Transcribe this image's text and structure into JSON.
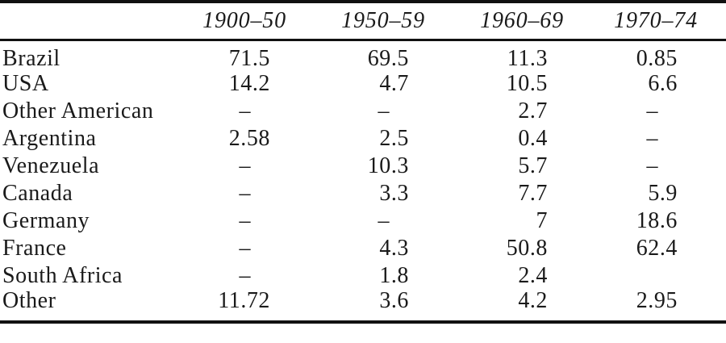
{
  "table": {
    "corner_label": "",
    "columns": [
      "1900–50",
      "1950–59",
      "1960–69",
      "1970–74"
    ],
    "rows": [
      {
        "label": "Brazil",
        "values": [
          "71.5",
          "69.5",
          "11.3",
          "0.85"
        ]
      },
      {
        "label": "USA",
        "values": [
          "14.2",
          "4.7",
          "10.5",
          "6.6"
        ]
      },
      {
        "label": "Other American",
        "values": [
          "–",
          "–",
          "2.7",
          "–"
        ]
      },
      {
        "label": "Argentina",
        "values": [
          "2.58",
          "2.5",
          "0.4",
          "–"
        ]
      },
      {
        "label": "Venezuela",
        "values": [
          "–",
          "10.3",
          "5.7",
          "–"
        ]
      },
      {
        "label": "Canada",
        "values": [
          "–",
          "3.3",
          "7.7",
          "5.9"
        ]
      },
      {
        "label": "Germany",
        "values": [
          "–",
          "–",
          "7",
          "18.6"
        ]
      },
      {
        "label": "France",
        "values": [
          "–",
          "4.3",
          "50.8",
          "62.4"
        ]
      },
      {
        "label": "South Africa",
        "values": [
          "–",
          "1.8",
          "2.4",
          ""
        ]
      },
      {
        "label": "Other",
        "values": [
          "11.72",
          "3.6",
          "4.2",
          "2.95"
        ]
      }
    ],
    "dash_glyph": "–",
    "colors": {
      "text": "#1a1a1a",
      "rule": "#111111",
      "background": "#ffffff"
    }
  }
}
